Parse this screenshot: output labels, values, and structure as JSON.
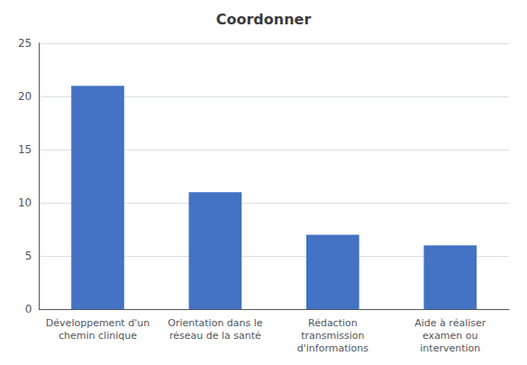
{
  "chart_data": {
    "type": "bar",
    "title": "Coordonner",
    "categories": [
      "Développement d'un\nchemin clinique",
      "Orientation dans le\nréseau de la santé",
      "Rédaction\ntransmission\nd'informations",
      "Aide à réaliser\nexamen ou\nintervention"
    ],
    "values": [
      21,
      11,
      7,
      6
    ],
    "color": "#4472C4",
    "ylim": [
      0,
      25
    ],
    "yticks": [
      0,
      5,
      10,
      15,
      20,
      25
    ],
    "grid": true
  }
}
